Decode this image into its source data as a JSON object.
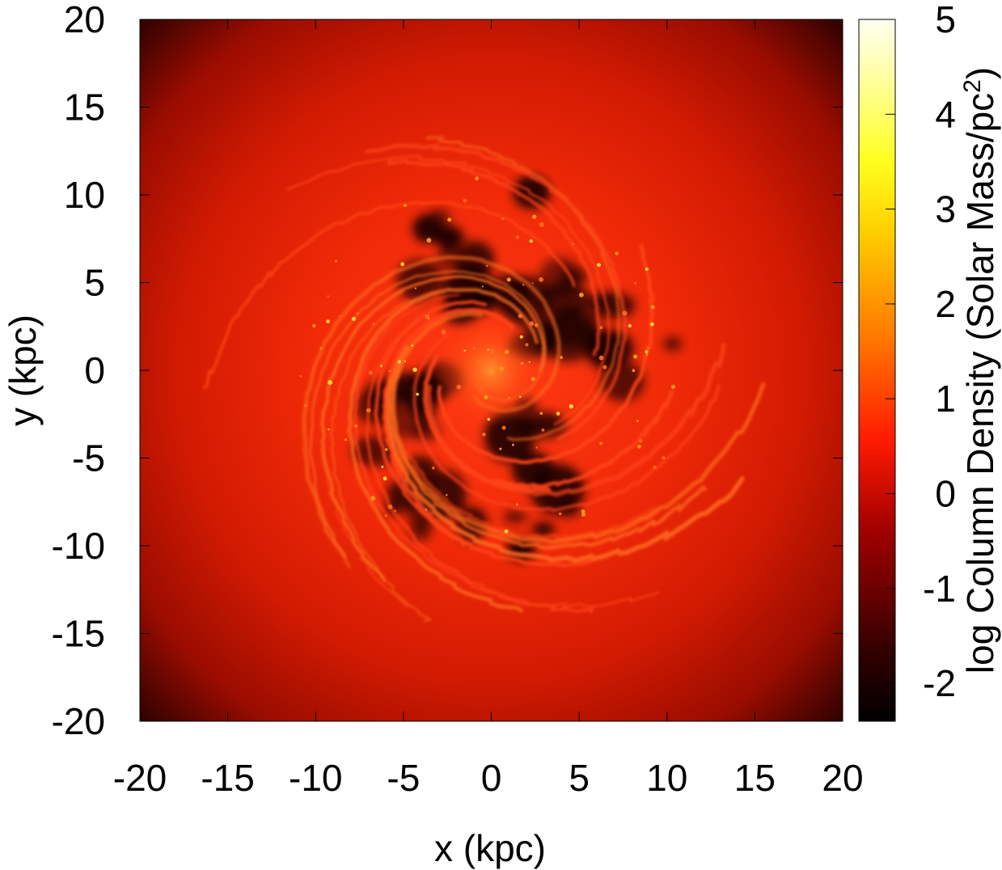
{
  "chart_data": {
    "type": "heatmap",
    "title": "",
    "xlabel": "x (kpc)",
    "ylabel": "y (kpc)",
    "xlim": [
      -20,
      20
    ],
    "ylim": [
      -20,
      20
    ],
    "x_ticks": [
      "-20",
      "-15",
      "-10",
      "-5",
      "0",
      "5",
      "10",
      "15",
      "20"
    ],
    "y_ticks": [
      "-20",
      "-15",
      "-10",
      "-5",
      "0",
      "5",
      "10",
      "15",
      "20"
    ],
    "grid": false,
    "colorbar": {
      "label_main": "log Column Density (Solar Mass/pc",
      "label_sup": "2",
      "label_end": ")",
      "range": [
        -2.4,
        5
      ],
      "ticks": [
        "-2",
        "-1",
        "0",
        "1",
        "2",
        "3",
        "4",
        "5"
      ],
      "colormap": "black-red-yellow-white",
      "stops": [
        "#000000",
        "#8b0000",
        "#ff1a00",
        "#ff8c00",
        "#ffff00",
        "#ffffe8"
      ]
    },
    "description_colors": {
      "background": "#c81400",
      "arms": "#ff3a10",
      "voids": "#1a0000",
      "edge": "#180000"
    }
  }
}
